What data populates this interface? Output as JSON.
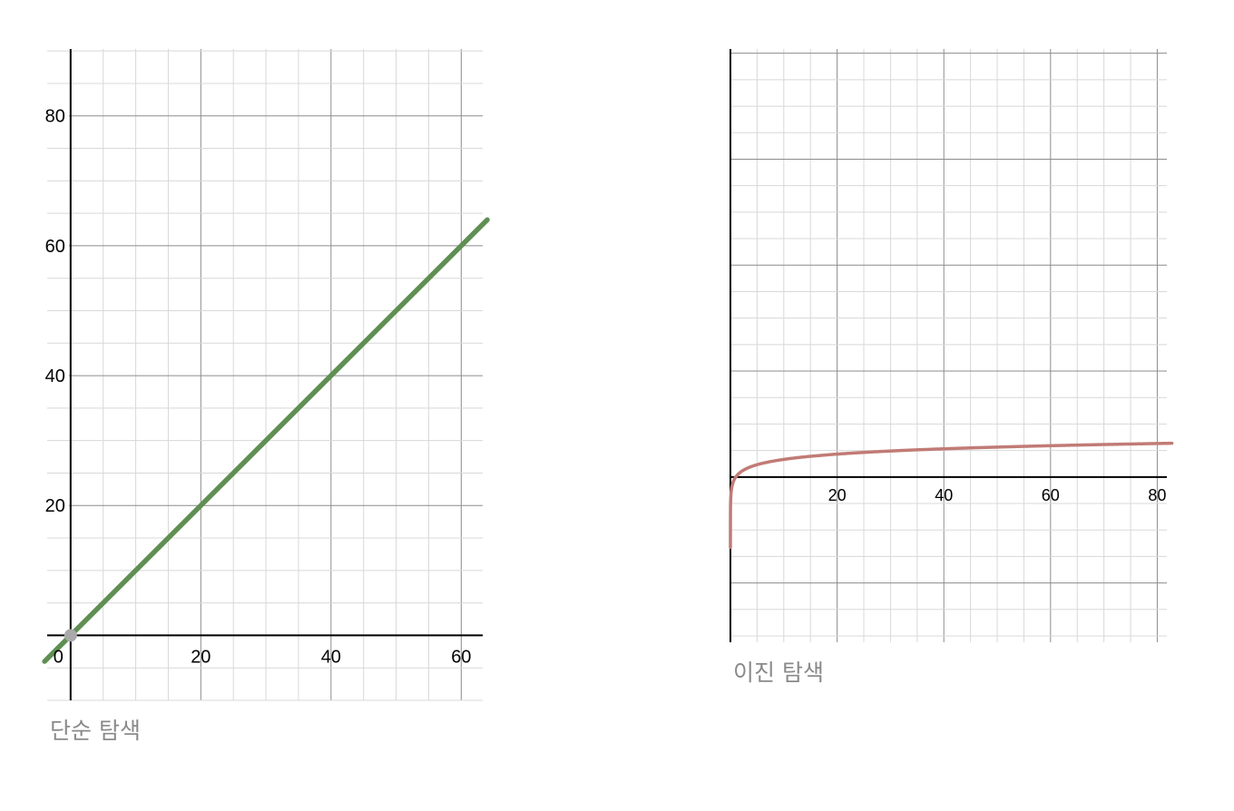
{
  "chart_data": [
    {
      "type": "line",
      "function": "y = x",
      "x_range": [
        -3.6,
        63.3
      ],
      "y_range": [
        -10,
        90.3
      ],
      "x_ticks": [
        20,
        40,
        60
      ],
      "x_tick_labels": [
        "20",
        "40",
        "60"
      ],
      "y_ticks": [
        20,
        40,
        60,
        80
      ],
      "y_tick_labels": [
        "20",
        "40",
        "60",
        "80"
      ],
      "origin_label": "0",
      "minor_grid": 5,
      "major_grid": 20,
      "grid": true,
      "series": [
        {
          "color": "#5f8f52",
          "points": [
            [
              -4,
              -4
            ],
            [
              64,
              64
            ]
          ]
        }
      ],
      "marked_point": [
        0,
        0
      ],
      "marked_point_color": "#a9a9a9",
      "caption": "단순 탐색"
    },
    {
      "type": "line",
      "function": "y = log2(x)",
      "x_range": [
        0,
        81.8
      ],
      "y_range": [
        -31.2,
        80.8
      ],
      "x_ticks": [
        20,
        40,
        60,
        80
      ],
      "x_tick_labels": [
        "20",
        "40",
        "60",
        "80"
      ],
      "minor_grid": 5,
      "major_grid": 20,
      "grid": true,
      "series": [
        {
          "color": "#c17b76",
          "curve": "log2"
        }
      ],
      "caption": "이진 탐색"
    }
  ]
}
